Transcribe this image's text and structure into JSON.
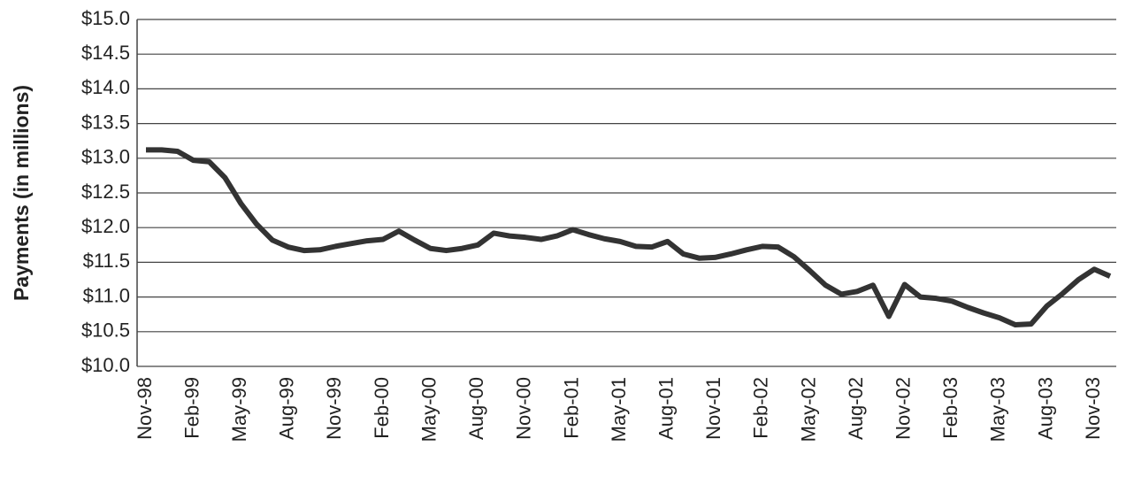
{
  "chart_data": {
    "type": "line",
    "y_axis_label": "Payments (in millions)",
    "categories": [
      "Nov-98",
      null,
      null,
      "Feb-99",
      null,
      null,
      "May-99",
      null,
      null,
      "Aug-99",
      null,
      null,
      "Nov-99",
      null,
      null,
      "Feb-00",
      null,
      null,
      "May-00",
      null,
      null,
      "Aug-00",
      null,
      null,
      "Nov-00",
      null,
      null,
      "Feb-01",
      null,
      null,
      "May-01",
      null,
      null,
      "Aug-01",
      null,
      null,
      "Nov-01",
      null,
      null,
      "Feb-02",
      null,
      null,
      "May-02",
      null,
      null,
      "Aug-02",
      null,
      null,
      "Nov-02",
      null,
      null,
      "Feb-03",
      null,
      null,
      "May-03",
      null,
      null,
      "Aug-03",
      null,
      null,
      "Nov-03",
      null
    ],
    "series": [
      {
        "name": "Payments",
        "color": "#333333",
        "values": [
          13.12,
          13.12,
          13.1,
          12.97,
          12.95,
          12.72,
          12.35,
          12.05,
          11.82,
          11.72,
          11.67,
          11.68,
          11.73,
          11.77,
          11.81,
          11.83,
          11.95,
          11.82,
          11.7,
          11.67,
          11.7,
          11.75,
          11.92,
          11.88,
          11.86,
          11.83,
          11.88,
          11.97,
          11.9,
          11.84,
          11.8,
          11.73,
          11.72,
          11.8,
          11.62,
          11.56,
          11.57,
          11.62,
          11.68,
          11.73,
          11.72,
          11.58,
          11.38,
          11.17,
          11.04,
          11.08,
          11.17,
          10.72,
          11.18,
          11.0,
          10.98,
          10.94,
          10.85,
          10.77,
          10.7,
          10.6,
          10.61,
          10.87,
          11.05,
          11.25,
          11.4,
          11.3
        ]
      }
    ],
    "ylim": [
      10,
      15
    ],
    "yticks": [
      {
        "value": 10,
        "label": "$10.0"
      },
      {
        "value": 10.5,
        "label": "$10.5"
      },
      {
        "value": 11,
        "label": "$11.0"
      },
      {
        "value": 11.5,
        "label": "$11.5"
      },
      {
        "value": 12,
        "label": "$12.0"
      },
      {
        "value": 12.5,
        "label": "$12.5"
      },
      {
        "value": 13,
        "label": "$13.0"
      },
      {
        "value": 13.5,
        "label": "$13.5"
      },
      {
        "value": 14,
        "label": "$14.0"
      },
      {
        "value": 14.5,
        "label": "$14.5"
      },
      {
        "value": 15,
        "label": "$15.0"
      }
    ],
    "grid": true
  }
}
